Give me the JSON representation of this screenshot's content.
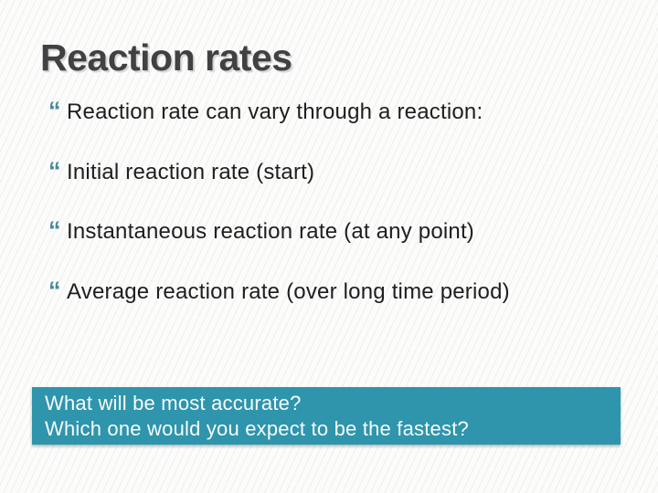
{
  "slide": {
    "title": "Reaction rates",
    "bullet_glyph": "“",
    "bullets": [
      "Reaction rate can vary through a reaction:",
      "Initial reaction rate (start)",
      "Instantaneous reaction rate (at any point)",
      "Average reaction rate (over long time period)"
    ],
    "callout": {
      "line1": "What will be most accurate?",
      "line2": "Which one would you expect to be the fastest?"
    },
    "colors": {
      "callout_teal": "#2e95ac",
      "bullet_teal": "#47899c",
      "title_charcoal": "#414143",
      "body_text": "#1e1e1e",
      "background": "#fcfcfb"
    }
  }
}
